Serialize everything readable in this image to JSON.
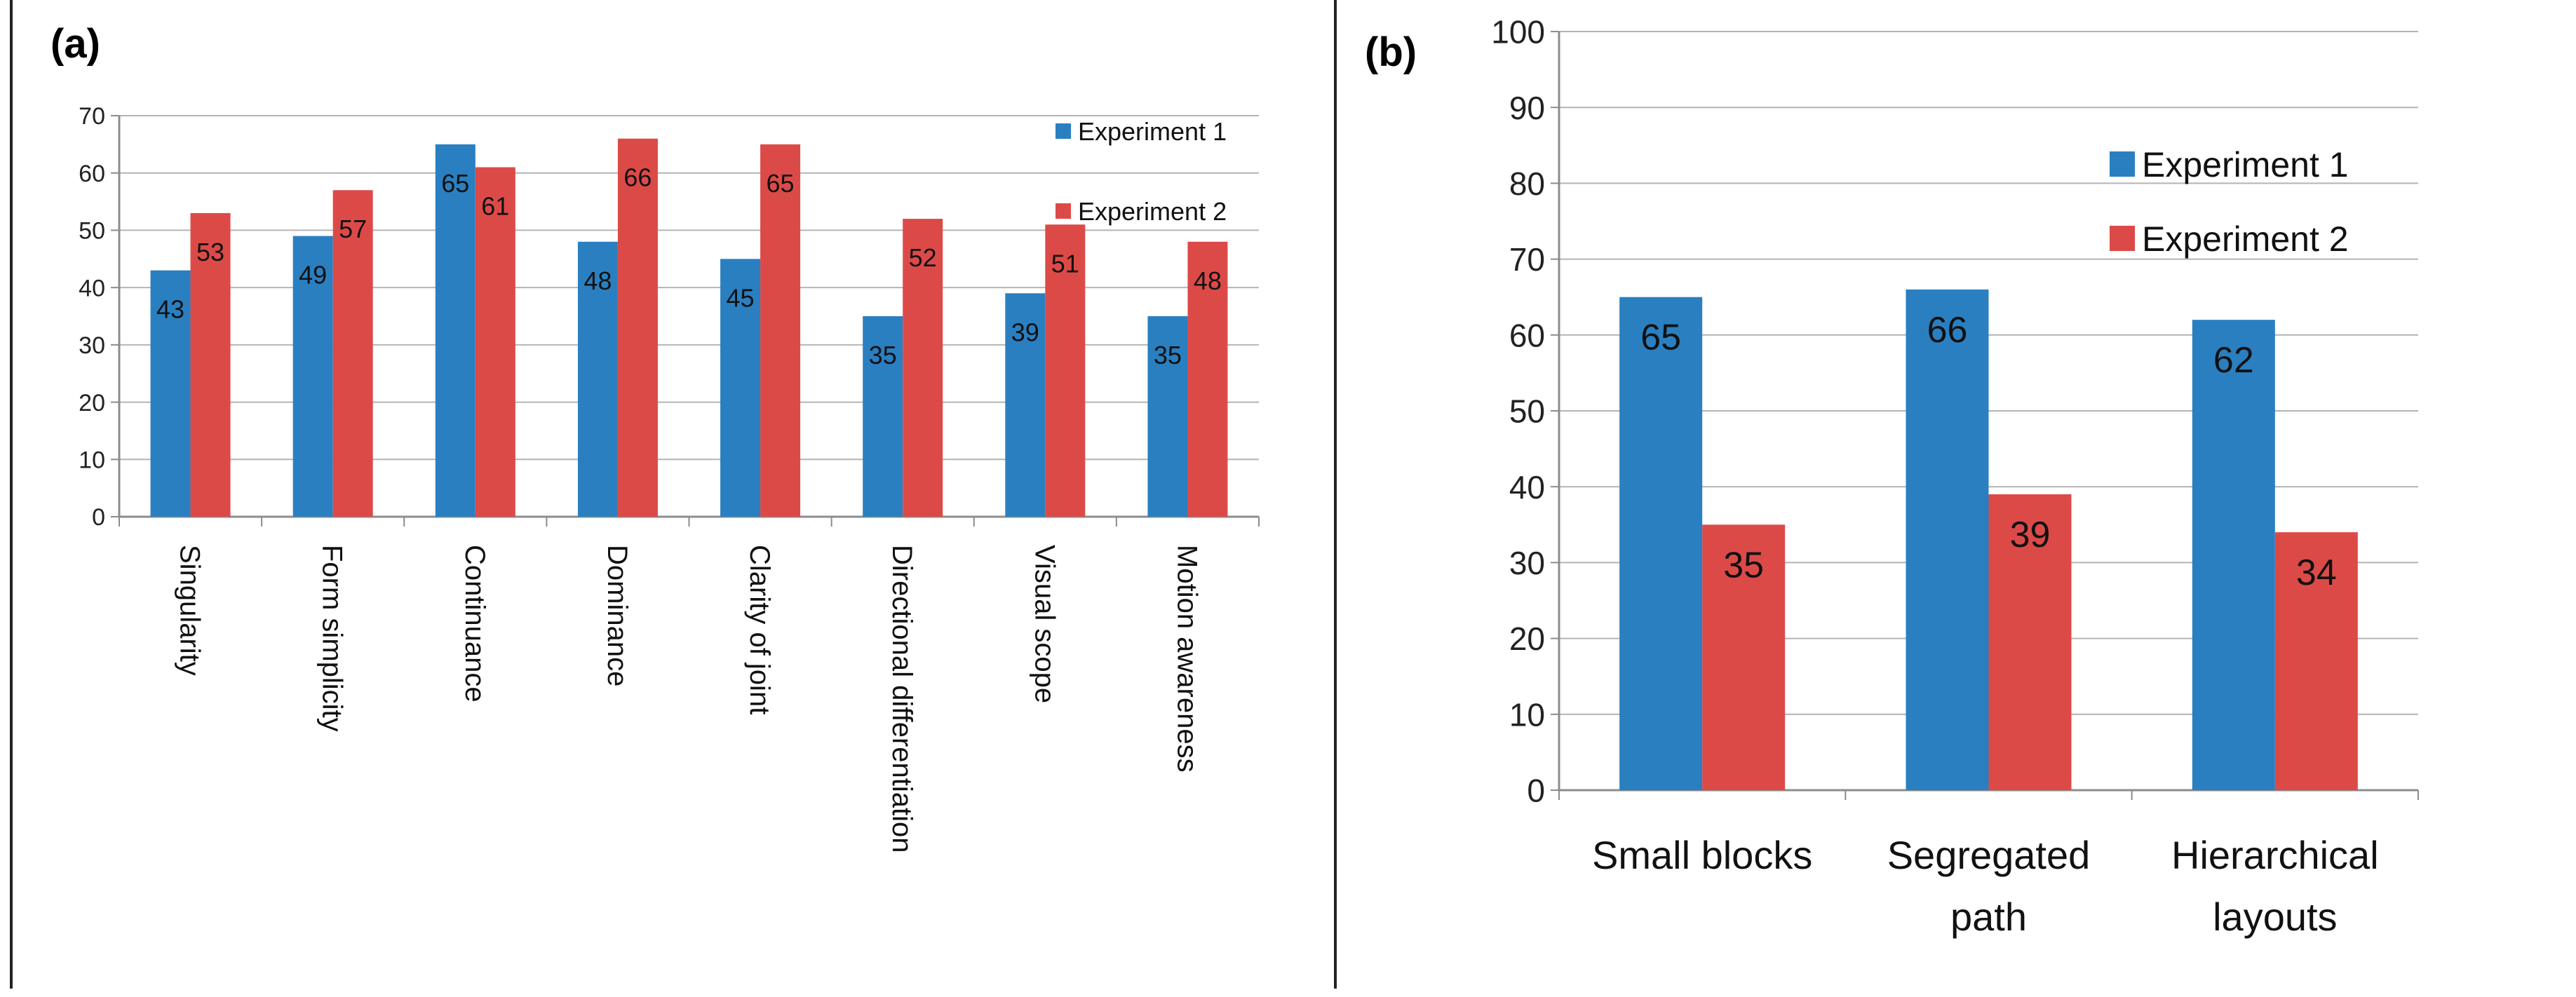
{
  "panels": {
    "a_label": "(a)",
    "b_label": "(b)"
  },
  "colors": {
    "experiment1": "#2a7fc0",
    "experiment2": "#dc4a48",
    "grid": "#b4b4b4",
    "axis": "#8c8c8c"
  },
  "chart_data": [
    {
      "type": "bar",
      "panel": "(a)",
      "categories": [
        "Singularity",
        "Form simplicity",
        "Continuance",
        "Dominance",
        "Clarity of joint",
        "Directional differentiation",
        "Visual scope",
        "Motion awareness"
      ],
      "series": [
        {
          "name": "Experiment 1",
          "values": [
            43,
            49,
            65,
            48,
            45,
            35,
            39,
            35
          ]
        },
        {
          "name": "Experiment 2",
          "values": [
            53,
            57,
            61,
            66,
            65,
            52,
            51,
            48
          ]
        }
      ],
      "ylim": [
        0,
        70
      ],
      "yticks": [
        0,
        10,
        20,
        30,
        40,
        50,
        60,
        70
      ],
      "xlabel": "",
      "ylabel": "",
      "grid": true,
      "legend": "top-right",
      "category_label_orientation": "vertical"
    },
    {
      "type": "bar",
      "panel": "(b)",
      "categories": [
        "Small blocks",
        "Segregated path",
        "Hierarchical layouts"
      ],
      "category_lines": [
        [
          "Small blocks"
        ],
        [
          "Segregated",
          "path"
        ],
        [
          "Hierarchical",
          "layouts"
        ]
      ],
      "series": [
        {
          "name": "Experiment 1",
          "values": [
            65,
            66,
            62
          ]
        },
        {
          "name": "Experiment 2",
          "values": [
            35,
            39,
            34
          ]
        }
      ],
      "ylim": [
        0,
        100
      ],
      "yticks": [
        0,
        10,
        20,
        30,
        40,
        50,
        60,
        70,
        80,
        90,
        100
      ],
      "xlabel": "",
      "ylabel": "",
      "grid": true,
      "legend": "right"
    }
  ]
}
